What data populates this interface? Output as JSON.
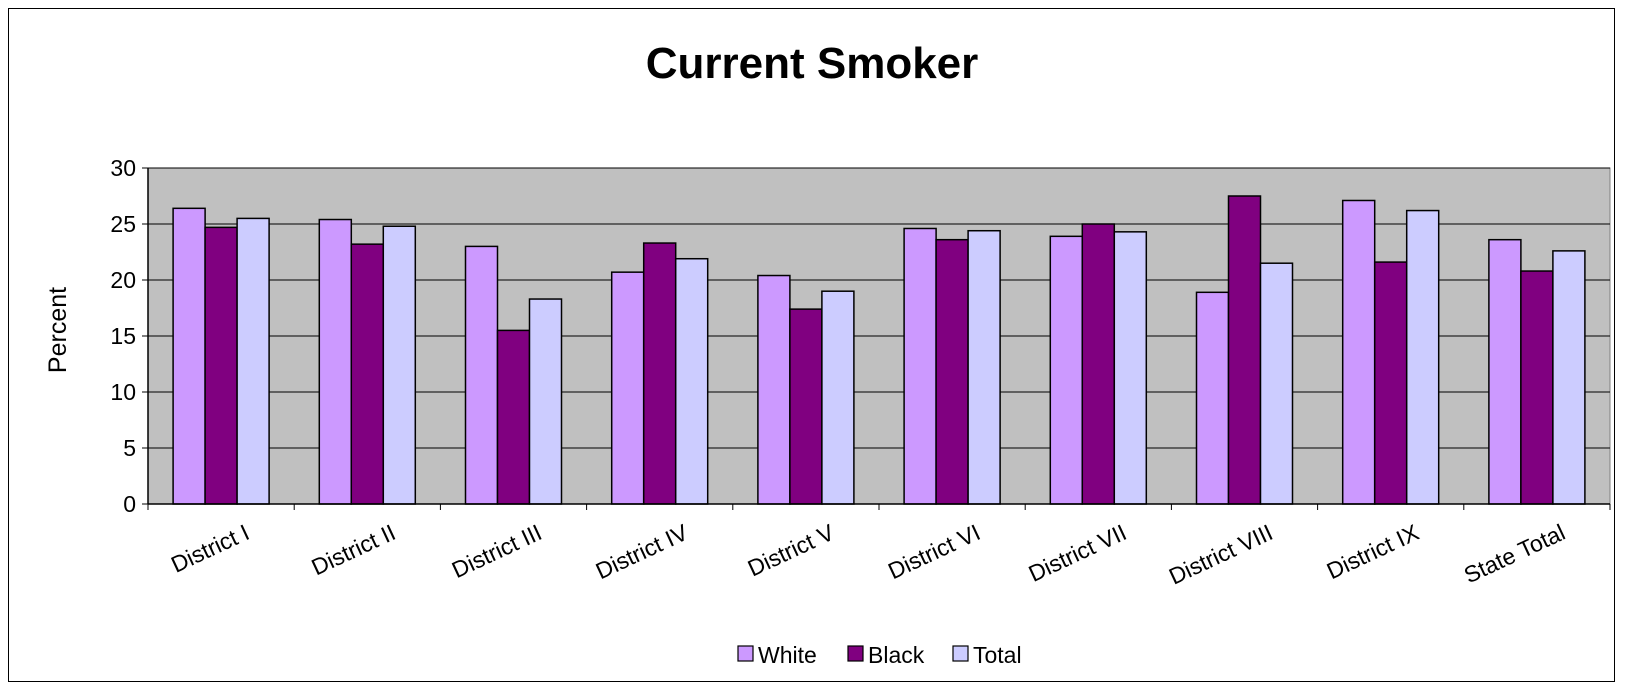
{
  "chart_data": {
    "type": "bar",
    "title": "Current Smoker",
    "ylabel": "Percent",
    "xlabel": "",
    "ylim": [
      0,
      30
    ],
    "yticks": [
      0,
      5,
      10,
      15,
      20,
      25,
      30
    ],
    "grid": true,
    "legend": "bottom",
    "categories": [
      "District I",
      "District II",
      "District III",
      "District IV",
      "District V",
      "District VI",
      "District VII",
      "District VIII",
      "District IX",
      "State Total"
    ],
    "series": [
      {
        "name": "White",
        "color": "#cc99ff",
        "values": [
          26.4,
          25.4,
          23.0,
          20.7,
          20.4,
          24.6,
          23.9,
          18.9,
          27.1,
          23.6
        ]
      },
      {
        "name": "Black",
        "color": "#800080",
        "values": [
          24.7,
          23.2,
          15.5,
          23.3,
          17.4,
          23.6,
          25.0,
          27.5,
          21.6,
          20.8
        ]
      },
      {
        "name": "Total",
        "color": "#ccccff",
        "values": [
          25.5,
          24.8,
          18.3,
          21.9,
          19.0,
          24.4,
          24.3,
          21.5,
          26.2,
          22.6
        ]
      }
    ],
    "plot_background": "#c0c0c0"
  }
}
